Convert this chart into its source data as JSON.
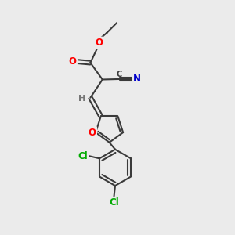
{
  "background_color": "#ebebeb",
  "bond_color": "#3a3a3a",
  "bond_width": 1.5,
  "atom_colors": {
    "O": "#ff0000",
    "N": "#0000cc",
    "Cl": "#00aa00",
    "H": "#777777"
  },
  "font_size": 8.5,
  "fig_width": 3.0,
  "fig_height": 3.0,
  "dpi": 100
}
